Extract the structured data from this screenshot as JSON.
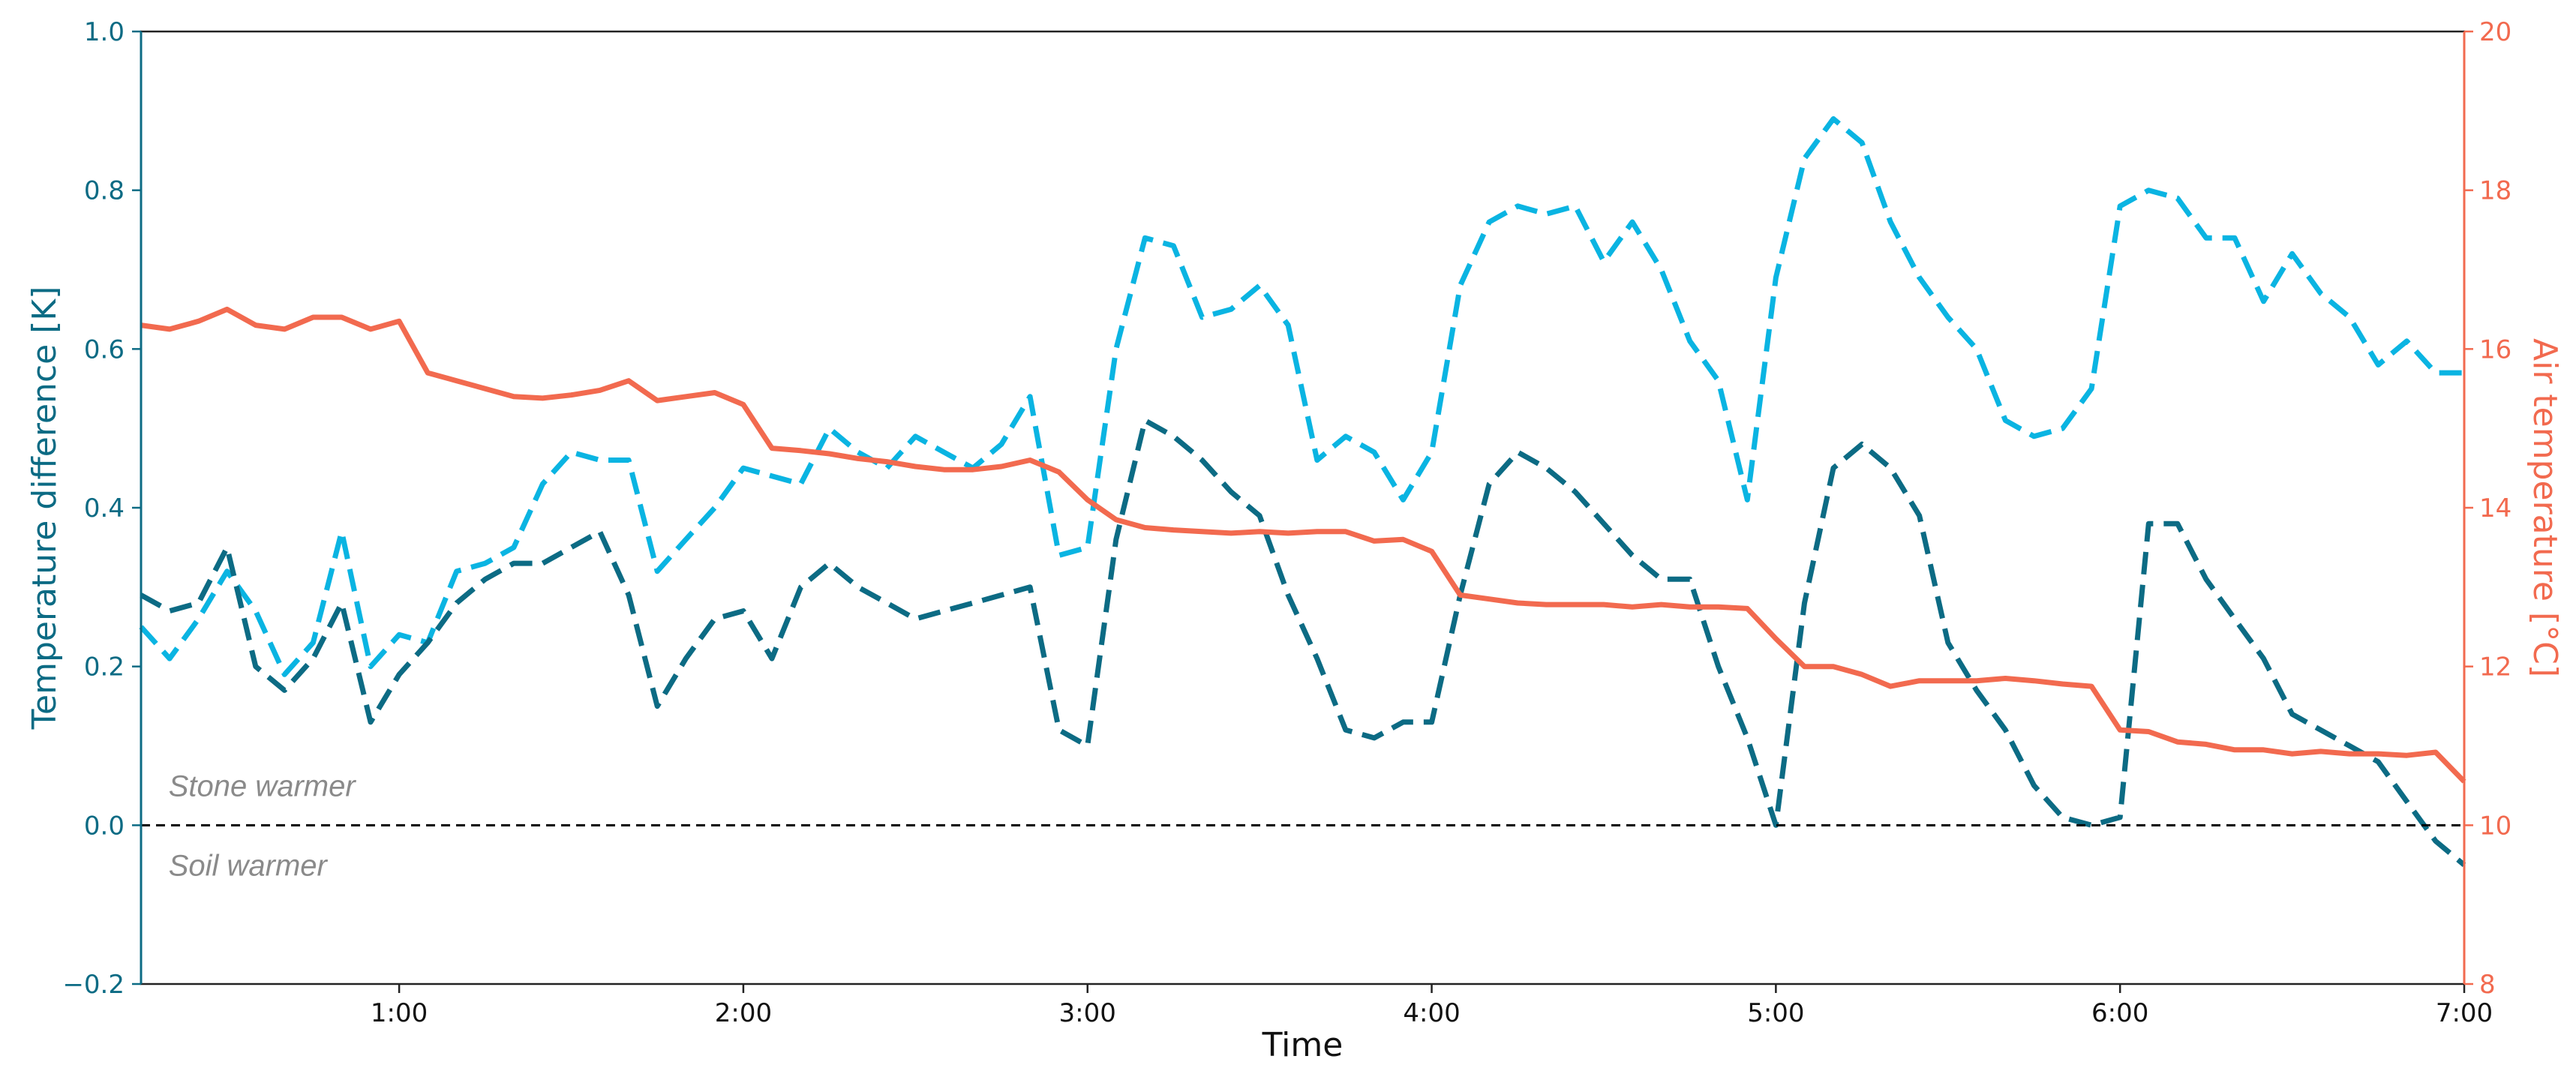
{
  "chart_data": {
    "type": "line",
    "title": "",
    "xlabel": "Time",
    "ylabel_left": "Temperature difference [K]",
    "ylabel_right": "Air temperature [°C]",
    "xlim": [
      0.25,
      7.0
    ],
    "ylim_left": [
      -0.2,
      1.0
    ],
    "ylim_right": [
      8,
      20
    ],
    "x_ticks": [
      {
        "value": 1,
        "label": "1:00"
      },
      {
        "value": 2,
        "label": "2:00"
      },
      {
        "value": 3,
        "label": "3:00"
      },
      {
        "value": 4,
        "label": "4:00"
      },
      {
        "value": 5,
        "label": "5:00"
      },
      {
        "value": 6,
        "label": "6:00"
      },
      {
        "value": 7,
        "label": "7:00"
      }
    ],
    "y_left_ticks": [
      {
        "value": -0.2,
        "label": "−0.2"
      },
      {
        "value": 0.0,
        "label": "0.0"
      },
      {
        "value": 0.2,
        "label": "0.2"
      },
      {
        "value": 0.4,
        "label": "0.4"
      },
      {
        "value": 0.6,
        "label": "0.6"
      },
      {
        "value": 0.8,
        "label": "0.8"
      },
      {
        "value": 1.0,
        "label": "1.0"
      }
    ],
    "y_right_ticks": [
      {
        "value": 8,
        "label": "8"
      },
      {
        "value": 10,
        "label": "10"
      },
      {
        "value": 12,
        "label": "12"
      },
      {
        "value": 14,
        "label": "14"
      },
      {
        "value": 16,
        "label": "16"
      },
      {
        "value": 18,
        "label": "18"
      },
      {
        "value": 20,
        "label": "20"
      }
    ],
    "reference_line": {
      "axis": "left",
      "value": 0.0,
      "color": "#000000",
      "style": "dashed"
    },
    "annotations": [
      {
        "text": "Stone warmer",
        "x": 0.33,
        "y": 0.05
      },
      {
        "text": "Soil warmer",
        "x": 0.33,
        "y": -0.05
      }
    ],
    "grid": false,
    "legend": "none",
    "series": [
      {
        "axis": "left",
        "color": "#0ab4e2",
        "style": "dashed",
        "x": [
          0.25,
          0.333,
          0.417,
          0.5,
          0.583,
          0.667,
          0.75,
          0.833,
          0.917,
          1.0,
          1.083,
          1.167,
          1.25,
          1.333,
          1.417,
          1.5,
          1.583,
          1.667,
          1.75,
          1.833,
          1.917,
          2.0,
          2.083,
          2.167,
          2.25,
          2.333,
          2.417,
          2.5,
          2.583,
          2.667,
          2.75,
          2.833,
          2.917,
          3.0,
          3.083,
          3.167,
          3.25,
          3.333,
          3.417,
          3.5,
          3.583,
          3.667,
          3.75,
          3.833,
          3.917,
          4.0,
          4.083,
          4.167,
          4.25,
          4.333,
          4.417,
          4.5,
          4.583,
          4.667,
          4.75,
          4.833,
          4.917,
          5.0,
          5.083,
          5.167,
          5.25,
          5.333,
          5.417,
          5.5,
          5.583,
          5.667,
          5.75,
          5.833,
          5.917,
          6.0,
          6.083,
          6.167,
          6.25,
          6.333,
          6.417,
          6.5,
          6.583,
          6.667,
          6.75,
          6.833,
          6.917,
          7.0
        ],
        "y": [
          0.25,
          0.21,
          0.26,
          0.32,
          0.27,
          0.19,
          0.23,
          0.37,
          0.2,
          0.24,
          0.23,
          0.32,
          0.33,
          0.35,
          0.43,
          0.47,
          0.46,
          0.46,
          0.32,
          0.36,
          0.4,
          0.45,
          0.44,
          0.43,
          0.5,
          0.47,
          0.45,
          0.49,
          0.47,
          0.45,
          0.48,
          0.54,
          0.34,
          0.35,
          0.6,
          0.74,
          0.73,
          0.64,
          0.65,
          0.68,
          0.63,
          0.46,
          0.49,
          0.47,
          0.41,
          0.47,
          0.68,
          0.76,
          0.78,
          0.77,
          0.78,
          0.71,
          0.76,
          0.7,
          0.61,
          0.56,
          0.41,
          0.69,
          0.84,
          0.89,
          0.86,
          0.76,
          0.69,
          0.64,
          0.6,
          0.51,
          0.49,
          0.5,
          0.55,
          0.78,
          0.8,
          0.79,
          0.74,
          0.74,
          0.66,
          0.72,
          0.67,
          0.64,
          0.58,
          0.61,
          0.57,
          0.57
        ]
      },
      {
        "axis": "left",
        "color": "#0c6b84",
        "style": "dashed",
        "x": [
          0.25,
          0.333,
          0.417,
          0.5,
          0.583,
          0.667,
          0.75,
          0.833,
          0.917,
          1.0,
          1.083,
          1.167,
          1.25,
          1.333,
          1.417,
          1.5,
          1.583,
          1.667,
          1.75,
          1.833,
          1.917,
          2.0,
          2.083,
          2.167,
          2.25,
          2.333,
          2.417,
          2.5,
          2.583,
          2.667,
          2.75,
          2.833,
          2.917,
          3.0,
          3.083,
          3.167,
          3.25,
          3.333,
          3.417,
          3.5,
          3.583,
          3.667,
          3.75,
          3.833,
          3.917,
          4.0,
          4.083,
          4.167,
          4.25,
          4.333,
          4.417,
          4.5,
          4.583,
          4.667,
          4.75,
          4.833,
          4.917,
          5.0,
          5.083,
          5.167,
          5.25,
          5.333,
          5.417,
          5.5,
          5.583,
          5.667,
          5.75,
          5.833,
          5.917,
          6.0,
          6.083,
          6.167,
          6.25,
          6.333,
          6.417,
          6.5,
          6.583,
          6.667,
          6.75,
          6.833,
          6.917,
          7.0
        ],
        "y": [
          0.29,
          0.27,
          0.28,
          0.35,
          0.2,
          0.17,
          0.21,
          0.28,
          0.13,
          0.19,
          0.23,
          0.28,
          0.31,
          0.33,
          0.33,
          0.35,
          0.37,
          0.29,
          0.15,
          0.21,
          0.26,
          0.27,
          0.21,
          0.3,
          0.33,
          0.3,
          0.28,
          0.26,
          0.27,
          0.28,
          0.29,
          0.3,
          0.12,
          0.1,
          0.36,
          0.51,
          0.49,
          0.46,
          0.42,
          0.39,
          0.29,
          0.21,
          0.12,
          0.11,
          0.13,
          0.13,
          0.29,
          0.43,
          0.47,
          0.45,
          0.42,
          0.38,
          0.34,
          0.31,
          0.31,
          0.2,
          0.11,
          0.0,
          0.28,
          0.45,
          0.48,
          0.45,
          0.39,
          0.23,
          0.17,
          0.12,
          0.05,
          0.01,
          0.0,
          0.01,
          0.38,
          0.38,
          0.31,
          0.26,
          0.21,
          0.14,
          0.12,
          0.1,
          0.08,
          0.03,
          -0.02,
          -0.05
        ]
      },
      {
        "axis": "right",
        "color": "#f26a4f",
        "style": "solid",
        "x": [
          0.25,
          0.333,
          0.417,
          0.5,
          0.583,
          0.667,
          0.75,
          0.833,
          0.917,
          1.0,
          1.083,
          1.167,
          1.25,
          1.333,
          1.417,
          1.5,
          1.583,
          1.667,
          1.75,
          1.833,
          1.917,
          2.0,
          2.083,
          2.167,
          2.25,
          2.333,
          2.417,
          2.5,
          2.583,
          2.667,
          2.75,
          2.833,
          2.917,
          3.0,
          3.083,
          3.167,
          3.25,
          3.333,
          3.417,
          3.5,
          3.583,
          3.667,
          3.75,
          3.833,
          3.917,
          4.0,
          4.083,
          4.167,
          4.25,
          4.333,
          4.417,
          4.5,
          4.583,
          4.667,
          4.75,
          4.833,
          4.917,
          5.0,
          5.083,
          5.167,
          5.25,
          5.333,
          5.417,
          5.5,
          5.583,
          5.667,
          5.75,
          5.833,
          5.917,
          6.0,
          6.083,
          6.167,
          6.25,
          6.333,
          6.417,
          6.5,
          6.583,
          6.667,
          6.75,
          6.833,
          6.917,
          7.0
        ],
        "y": [
          16.3,
          16.25,
          16.35,
          16.5,
          16.3,
          16.25,
          16.4,
          16.4,
          16.25,
          16.35,
          15.7,
          15.6,
          15.5,
          15.4,
          15.38,
          15.42,
          15.48,
          15.6,
          15.35,
          15.4,
          15.45,
          15.3,
          14.75,
          14.72,
          14.68,
          14.62,
          14.58,
          14.52,
          14.48,
          14.48,
          14.52,
          14.6,
          14.45,
          14.1,
          13.85,
          13.75,
          13.72,
          13.7,
          13.68,
          13.7,
          13.68,
          13.7,
          13.7,
          13.58,
          13.6,
          13.45,
          12.9,
          12.85,
          12.8,
          12.78,
          12.78,
          12.78,
          12.75,
          12.78,
          12.75,
          12.75,
          12.73,
          12.35,
          12.0,
          12.0,
          11.9,
          11.75,
          11.82,
          11.82,
          11.82,
          11.85,
          11.82,
          11.78,
          11.75,
          11.2,
          11.18,
          11.05,
          11.02,
          10.95,
          10.95,
          10.9,
          10.93,
          10.9,
          10.9,
          10.88,
          10.92,
          10.55
        ]
      }
    ]
  }
}
